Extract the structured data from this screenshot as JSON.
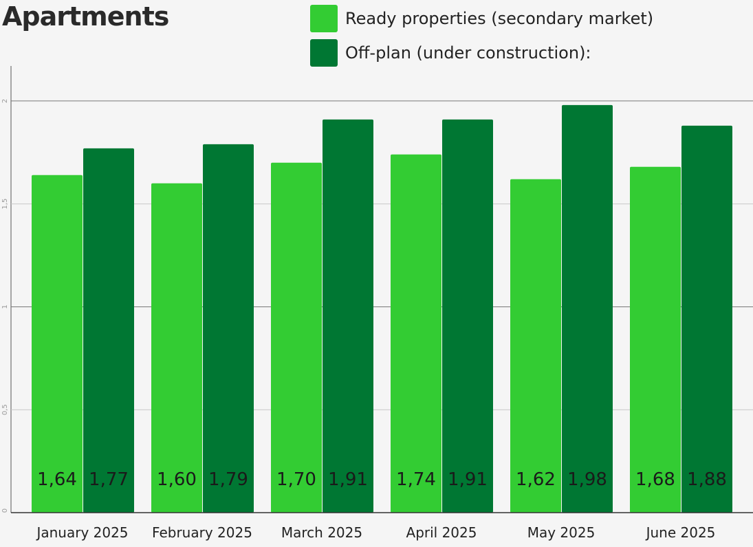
{
  "title": "Apartments",
  "legend": [
    {
      "label": "Ready properties (secondary market)",
      "color": "#33cc33"
    },
    {
      "label": "Off-plan (under construction):",
      "color": "#007733"
    }
  ],
  "chart_data": {
    "type": "bar",
    "categories": [
      "January 2025",
      "February 2025",
      "March 2025",
      "April 2025",
      "May 2025",
      "June 2025"
    ],
    "series": [
      {
        "name": "Ready properties (secondary market)",
        "values": [
          1.64,
          1.6,
          1.7,
          1.74,
          1.62,
          1.68
        ],
        "color": "#33cc33"
      },
      {
        "name": "Off-plan (under construction):",
        "values": [
          1.77,
          1.79,
          1.91,
          1.91,
          1.98,
          1.88
        ],
        "color": "#007733"
      }
    ],
    "data_labels": [
      [
        "1,64",
        "1,60",
        "1,70",
        "1,74",
        "1,62",
        "1,68"
      ],
      [
        "1,77",
        "1,79",
        "1,91",
        "1,91",
        "1,98",
        "1,88"
      ]
    ],
    "y_ticks": [
      0,
      0.5,
      1,
      1.5,
      2
    ],
    "y_tick_labels": [
      "0",
      "0,5",
      "1",
      "1,5",
      "2"
    ],
    "ylim": [
      0,
      2.17
    ],
    "grid": true,
    "legend_position": "top-right"
  }
}
